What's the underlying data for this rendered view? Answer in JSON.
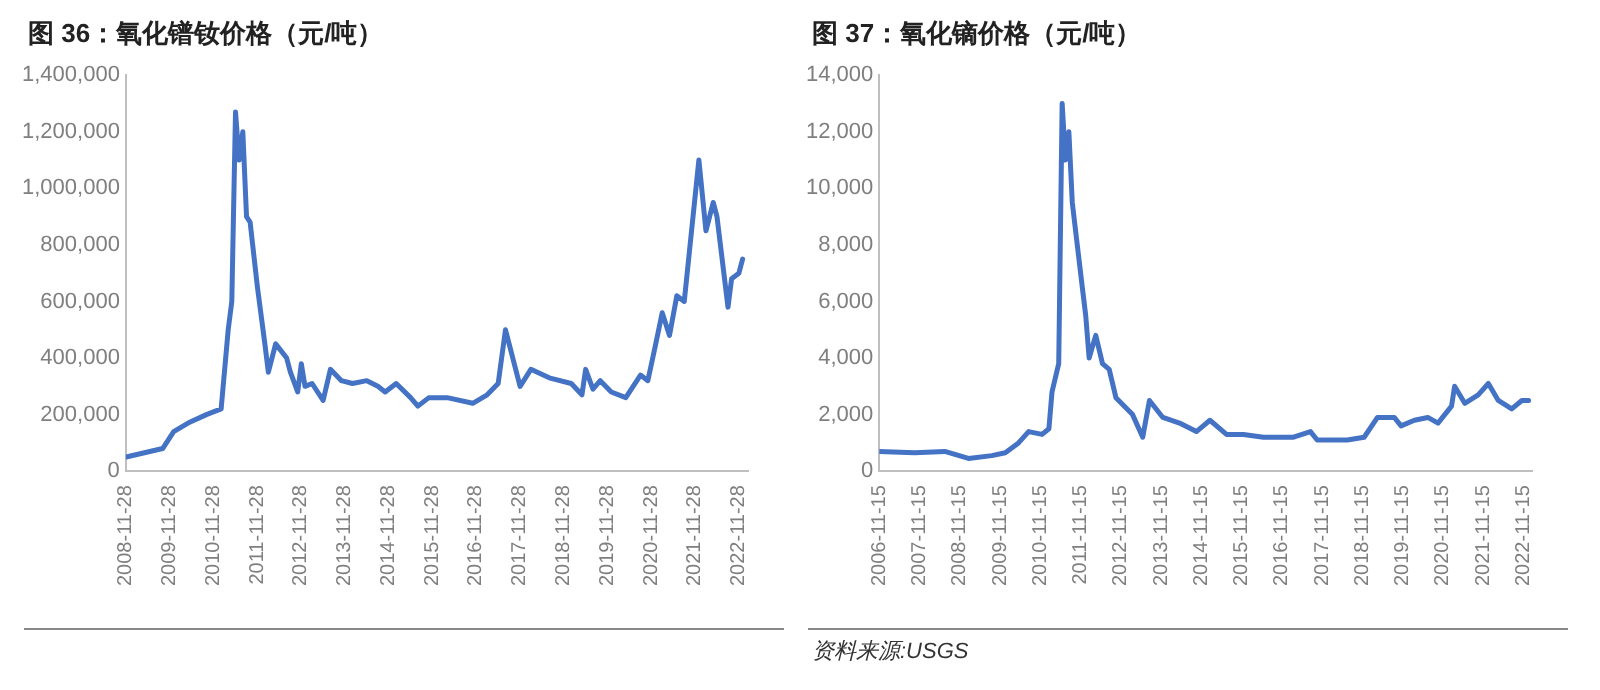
{
  "chart_data": [
    {
      "type": "line",
      "title": "图 36：氧化镨钕价格（元/吨）",
      "color": "#4472c4",
      "grid": false,
      "legend": false,
      "marker": "none",
      "line_style": "solid",
      "x": [
        "2008-12",
        "2009-10",
        "2010-01",
        "2010-05",
        "2010-10",
        "2011-02",
        "2011-04",
        "2011-05",
        "2011-06",
        "2011-07",
        "2011-08",
        "2011-09",
        "2011-10",
        "2011-12",
        "2012-02",
        "2012-03",
        "2012-05",
        "2012-08",
        "2012-09",
        "2012-11",
        "2012-12",
        "2013-01",
        "2013-03",
        "2013-06",
        "2013-08",
        "2013-11",
        "2014-02",
        "2014-06",
        "2014-09",
        "2014-11",
        "2015-02",
        "2015-06",
        "2015-08",
        "2015-11",
        "2016-04",
        "2016-11",
        "2017-03",
        "2017-06",
        "2017-08",
        "2017-10",
        "2017-12",
        "2018-03",
        "2018-08",
        "2019-02",
        "2019-05",
        "2019-06",
        "2019-08",
        "2019-10",
        "2020-01",
        "2020-05",
        "2020-09",
        "2020-11",
        "2021-01",
        "2021-03",
        "2021-05",
        "2021-07",
        "2021-09",
        "2021-11",
        "2022-01",
        "2022-03",
        "2022-05",
        "2022-06",
        "2022-09",
        "2022-10",
        "2022-12",
        "2023-01"
      ],
      "values": [
        50000,
        80000,
        140000,
        170000,
        200000,
        220000,
        500000,
        600000,
        1270000,
        1100000,
        1200000,
        900000,
        880000,
        650000,
        450000,
        350000,
        450000,
        400000,
        350000,
        280000,
        380000,
        300000,
        310000,
        250000,
        360000,
        320000,
        310000,
        320000,
        300000,
        280000,
        310000,
        260000,
        230000,
        260000,
        260000,
        240000,
        270000,
        310000,
        500000,
        400000,
        300000,
        360000,
        330000,
        310000,
        270000,
        360000,
        290000,
        320000,
        280000,
        260000,
        340000,
        320000,
        440000,
        560000,
        480000,
        620000,
        600000,
        850000,
        1100000,
        850000,
        950000,
        900000,
        580000,
        680000,
        700000,
        750000
      ],
      "xlim": [
        "2008-11-28",
        "2023-02-15"
      ],
      "xticks": [
        "2008-11-28",
        "2009-11-28",
        "2010-11-28",
        "2011-11-28",
        "2012-11-28",
        "2013-11-28",
        "2014-11-28",
        "2015-11-28",
        "2016-11-28",
        "2017-11-28",
        "2018-11-28",
        "2019-11-28",
        "2020-11-28",
        "2021-11-28",
        "2022-11-28"
      ],
      "ylim": [
        0,
        1400000
      ],
      "yticks": [
        {
          "value": 0,
          "label": "0"
        },
        {
          "value": 200000,
          "label": "200,000"
        },
        {
          "value": 400000,
          "label": "400,000"
        },
        {
          "value": 600000,
          "label": "600,000"
        },
        {
          "value": 800000,
          "label": "800,000"
        },
        {
          "value": 1000000,
          "label": "1,000,000"
        },
        {
          "value": 1200000,
          "label": "1,200,000"
        },
        {
          "value": 1400000,
          "label": "1,400,000"
        }
      ]
    },
    {
      "type": "line",
      "title": "图 37：氧化镝价格（元/吨）",
      "color": "#4472c4",
      "grid": false,
      "legend": false,
      "marker": "none",
      "line_style": "solid",
      "annotations": [
        "资料来源:USGS"
      ],
      "x": [
        "2006-11-15",
        "2007-10",
        "2008-07",
        "2009-02",
        "2009-09",
        "2010-01",
        "2010-05",
        "2010-08",
        "2010-12",
        "2011-02",
        "2011-03",
        "2011-05",
        "2011-06",
        "2011-07",
        "2011-08",
        "2011-09",
        "2011-10",
        "2011-12",
        "2012-01",
        "2012-02",
        "2012-04",
        "2012-06",
        "2012-08",
        "2012-10",
        "2013-03",
        "2013-06",
        "2013-08",
        "2013-12",
        "2014-05",
        "2014-10",
        "2015-02",
        "2015-07",
        "2015-12",
        "2016-06",
        "2017-03",
        "2017-08",
        "2017-10",
        "2018-07",
        "2018-12",
        "2019-04",
        "2019-09",
        "2019-11",
        "2020-03",
        "2020-07",
        "2020-10",
        "2021-02",
        "2021-03",
        "2021-06",
        "2021-10",
        "2022-01",
        "2022-04",
        "2022-08",
        "2022-11",
        "2023-01"
      ],
      "values": [
        700,
        650,
        700,
        450,
        550,
        650,
        1000,
        1400,
        1300,
        1500,
        2800,
        3800,
        13000,
        11000,
        12000,
        9500,
        8500,
        6500,
        5500,
        4000,
        4800,
        3800,
        3600,
        2600,
        2000,
        1200,
        2500,
        1900,
        1700,
        1400,
        1800,
        1300,
        1300,
        1200,
        1200,
        1400,
        1100,
        1100,
        1200,
        1900,
        1900,
        1600,
        1800,
        1900,
        1700,
        2300,
        3000,
        2400,
        2700,
        3100,
        2500,
        2200,
        2500,
        2500
      ],
      "xlim": [
        "2006-11-15",
        "2023-02-01"
      ],
      "xticks": [
        "2006-11-15",
        "2007-11-15",
        "2008-11-15",
        "2009-11-15",
        "2010-11-15",
        "2011-11-15",
        "2012-11-15",
        "2013-11-15",
        "2014-11-15",
        "2015-11-15",
        "2016-11-15",
        "2017-11-15",
        "2018-11-15",
        "2019-11-15",
        "2020-11-15",
        "2021-11-15",
        "2022-11-15"
      ],
      "ylim": [
        0,
        14000
      ],
      "yticks": [
        {
          "value": 0,
          "label": "0"
        },
        {
          "value": 2000,
          "label": "2,000"
        },
        {
          "value": 4000,
          "label": "4,000"
        },
        {
          "value": 6000,
          "label": "6,000"
        },
        {
          "value": 8000,
          "label": "8,000"
        },
        {
          "value": 10000,
          "label": "10,000"
        },
        {
          "value": 12000,
          "label": "12,000"
        },
        {
          "value": 14000,
          "label": "14,000"
        }
      ]
    }
  ]
}
